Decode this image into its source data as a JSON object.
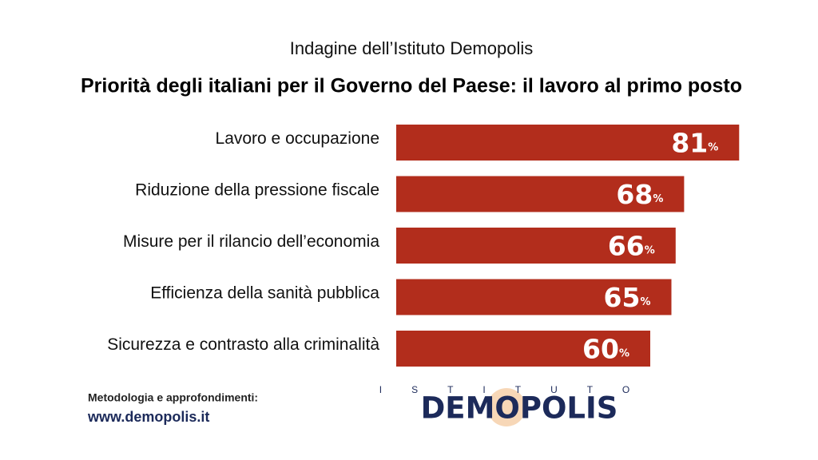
{
  "chart_data": {
    "type": "bar",
    "orientation": "horizontal",
    "subtitle": "Indagine dell’Istituto Demopolis",
    "title": "Priorità degli italiani per il Governo del Paese: il lavoro al primo posto",
    "categories": [
      "Lavoro e occupazione",
      "Riduzione della pressione fiscale",
      "Misure per il rilancio dell’economia",
      "Efficienza della sanità pubblica",
      "Sicurezza e contrasto alla criminalità"
    ],
    "values": [
      81,
      68,
      66,
      65,
      60
    ],
    "value_labels": [
      "81%",
      "68%",
      "66%",
      "65%",
      "60%"
    ],
    "color": "#b22d1c",
    "footer_note": "Metodologia e approfondimenti:",
    "footer_url": "www.demopolis.it",
    "logo": {
      "top": "ISTITUTO",
      "main": "DEMOPOLIS"
    }
  }
}
